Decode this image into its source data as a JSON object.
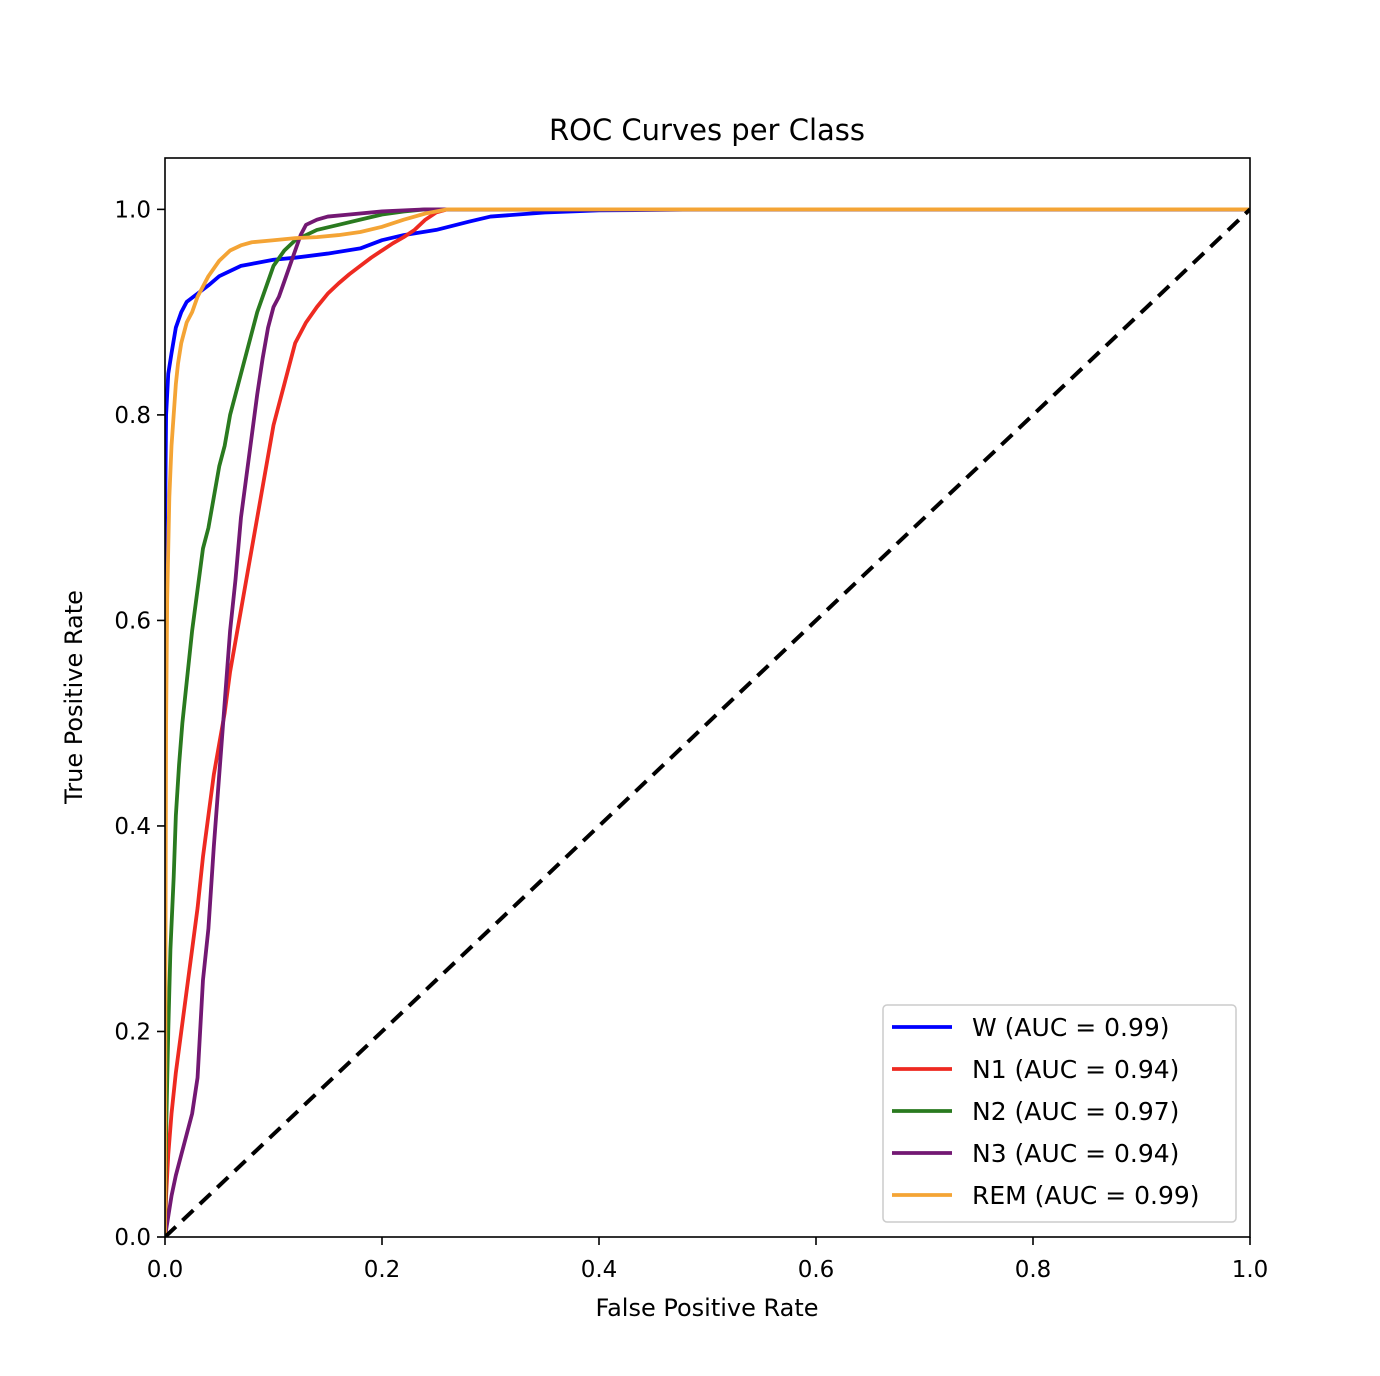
{
  "chart_data": {
    "type": "line",
    "title": "ROC Curves per Class",
    "xlabel": "False Positive Rate",
    "ylabel": "True Positive Rate",
    "xlim": [
      0.0,
      1.0
    ],
    "ylim": [
      0.0,
      1.05
    ],
    "xticks": [
      "0.0",
      "0.2",
      "0.4",
      "0.6",
      "0.8",
      "1.0"
    ],
    "yticks": [
      "0.0",
      "0.2",
      "0.4",
      "0.6",
      "0.8",
      "1.0"
    ],
    "grid": false,
    "legend_position": "lower-right",
    "series": [
      {
        "name": "W (AUC = 0.99)",
        "color": "#0000ff",
        "x": [
          0.0,
          0.0,
          0.001,
          0.003,
          0.006,
          0.01,
          0.015,
          0.02,
          0.03,
          0.04,
          0.05,
          0.07,
          0.08,
          0.1,
          0.12,
          0.15,
          0.18,
          0.2,
          0.22,
          0.25,
          0.28,
          0.3,
          0.35,
          0.4,
          0.5,
          0.6,
          0.8,
          1.0
        ],
        "y": [
          0.0,
          0.69,
          0.8,
          0.84,
          0.86,
          0.885,
          0.9,
          0.91,
          0.918,
          0.926,
          0.935,
          0.945,
          0.947,
          0.951,
          0.953,
          0.957,
          0.962,
          0.97,
          0.975,
          0.98,
          0.988,
          0.993,
          0.997,
          0.999,
          1.0,
          1.0,
          1.0,
          1.0
        ]
      },
      {
        "name": "N1 (AUC = 0.94)",
        "color": "#ee2a21",
        "x": [
          0.0,
          0.001,
          0.003,
          0.006,
          0.01,
          0.015,
          0.02,
          0.025,
          0.03,
          0.035,
          0.04,
          0.045,
          0.05,
          0.055,
          0.06,
          0.065,
          0.07,
          0.075,
          0.08,
          0.085,
          0.09,
          0.095,
          0.1,
          0.105,
          0.11,
          0.115,
          0.12,
          0.13,
          0.14,
          0.15,
          0.16,
          0.17,
          0.18,
          0.19,
          0.2,
          0.21,
          0.22,
          0.23,
          0.24,
          0.25,
          0.26,
          0.3,
          0.4,
          0.6,
          1.0
        ],
        "y": [
          0.0,
          0.04,
          0.08,
          0.12,
          0.16,
          0.2,
          0.24,
          0.28,
          0.32,
          0.37,
          0.41,
          0.45,
          0.48,
          0.51,
          0.55,
          0.58,
          0.61,
          0.64,
          0.67,
          0.7,
          0.73,
          0.76,
          0.79,
          0.81,
          0.83,
          0.85,
          0.87,
          0.89,
          0.905,
          0.918,
          0.928,
          0.937,
          0.945,
          0.953,
          0.96,
          0.967,
          0.973,
          0.98,
          0.99,
          0.997,
          1.0,
          1.0,
          1.0,
          1.0,
          1.0
        ]
      },
      {
        "name": "N2 (AUC = 0.97)",
        "color": "#2a7a1f",
        "x": [
          0.0,
          0.001,
          0.003,
          0.005,
          0.008,
          0.01,
          0.013,
          0.016,
          0.02,
          0.025,
          0.03,
          0.035,
          0.04,
          0.045,
          0.05,
          0.055,
          0.06,
          0.065,
          0.07,
          0.075,
          0.08,
          0.085,
          0.09,
          0.095,
          0.1,
          0.11,
          0.12,
          0.13,
          0.14,
          0.16,
          0.18,
          0.2,
          0.22,
          0.24,
          0.26,
          0.3,
          0.5,
          1.0
        ],
        "y": [
          0.0,
          0.1,
          0.2,
          0.28,
          0.35,
          0.41,
          0.46,
          0.5,
          0.54,
          0.59,
          0.63,
          0.67,
          0.69,
          0.72,
          0.75,
          0.77,
          0.8,
          0.82,
          0.84,
          0.86,
          0.88,
          0.9,
          0.915,
          0.93,
          0.945,
          0.96,
          0.97,
          0.975,
          0.98,
          0.985,
          0.99,
          0.995,
          0.998,
          1.0,
          1.0,
          1.0,
          1.0,
          1.0
        ]
      },
      {
        "name": "N3 (AUC = 0.94)",
        "color": "#731873",
        "x": [
          0.0,
          0.003,
          0.006,
          0.01,
          0.015,
          0.02,
          0.025,
          0.03,
          0.035,
          0.04,
          0.045,
          0.05,
          0.055,
          0.06,
          0.065,
          0.07,
          0.075,
          0.08,
          0.085,
          0.09,
          0.095,
          0.1,
          0.105,
          0.11,
          0.115,
          0.12,
          0.125,
          0.13,
          0.14,
          0.15,
          0.17,
          0.2,
          0.24,
          0.3,
          0.5,
          1.0
        ],
        "y": [
          0.0,
          0.02,
          0.04,
          0.06,
          0.08,
          0.1,
          0.12,
          0.155,
          0.25,
          0.3,
          0.38,
          0.45,
          0.52,
          0.59,
          0.64,
          0.7,
          0.74,
          0.78,
          0.82,
          0.855,
          0.885,
          0.905,
          0.915,
          0.93,
          0.945,
          0.96,
          0.975,
          0.985,
          0.99,
          0.993,
          0.995,
          0.998,
          1.0,
          1.0,
          1.0,
          1.0
        ]
      },
      {
        "name": "REM (AUC = 0.99)",
        "color": "#f4a435",
        "x": [
          0.0,
          0.0005,
          0.001,
          0.002,
          0.004,
          0.006,
          0.008,
          0.01,
          0.012,
          0.015,
          0.02,
          0.025,
          0.03,
          0.04,
          0.05,
          0.06,
          0.07,
          0.08,
          0.1,
          0.12,
          0.14,
          0.16,
          0.18,
          0.2,
          0.22,
          0.24,
          0.26,
          0.3,
          0.5,
          1.0
        ],
        "y": [
          0.0,
          0.3,
          0.5,
          0.62,
          0.72,
          0.77,
          0.8,
          0.83,
          0.85,
          0.87,
          0.89,
          0.9,
          0.915,
          0.935,
          0.95,
          0.96,
          0.965,
          0.968,
          0.97,
          0.972,
          0.973,
          0.975,
          0.978,
          0.983,
          0.99,
          0.996,
          1.0,
          1.0,
          1.0,
          1.0
        ]
      },
      {
        "name": "",
        "color": "#000000",
        "dashed": true,
        "x": [
          0.0,
          1.0
        ],
        "y": [
          0.0,
          1.0
        ]
      }
    ]
  }
}
